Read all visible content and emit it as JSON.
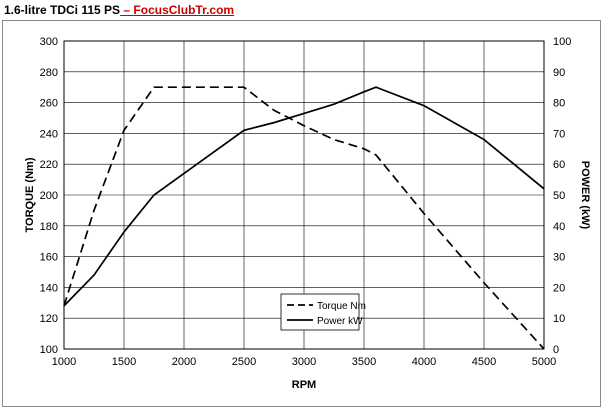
{
  "header": {
    "title": "1.6-litre TDCi 115 PS",
    "separator": " – ",
    "source_link": "FocusClubTr.com"
  },
  "chart_data": {
    "type": "line",
    "title": "1.6-litre TDCi 115 PS",
    "xlabel": "RPM",
    "ylabel_left": "TORQUE (Nm)",
    "ylabel_right": "POWER (kW)",
    "xlim": [
      1000,
      5000
    ],
    "ylim_left": [
      100,
      300
    ],
    "ylim_right": [
      0,
      100
    ],
    "x_ticks": [
      1000,
      1500,
      2000,
      2500,
      3000,
      3500,
      4000,
      4500,
      5000
    ],
    "y_left_ticks": [
      100,
      120,
      140,
      160,
      180,
      200,
      220,
      240,
      260,
      280,
      300
    ],
    "y_right_ticks": [
      0,
      10,
      20,
      30,
      40,
      50,
      60,
      70,
      80,
      90,
      100
    ],
    "grid": true,
    "legend_position": "bottom-center",
    "series": [
      {
        "name": "Torque Nm",
        "axis": "left",
        "style": "dashed",
        "color": "#000000",
        "x": [
          1000,
          1250,
          1500,
          1750,
          2000,
          2250,
          2500,
          2750,
          3000,
          3250,
          3500,
          3600,
          4000,
          4500,
          5000
        ],
        "y": [
          128,
          190,
          242,
          270,
          270,
          270,
          270,
          255,
          245,
          236,
          230,
          226,
          188,
          143,
          100
        ]
      },
      {
        "name": "Power kW",
        "axis": "right",
        "style": "solid",
        "color": "#000000",
        "x": [
          1000,
          1250,
          1500,
          1750,
          2000,
          2500,
          2750,
          3000,
          3250,
          3500,
          3600,
          4000,
          4500,
          5000
        ],
        "y": [
          14,
          24,
          38,
          50,
          57,
          71,
          73.5,
          76.5,
          79.5,
          83.5,
          85,
          79,
          68,
          52
        ]
      }
    ]
  }
}
